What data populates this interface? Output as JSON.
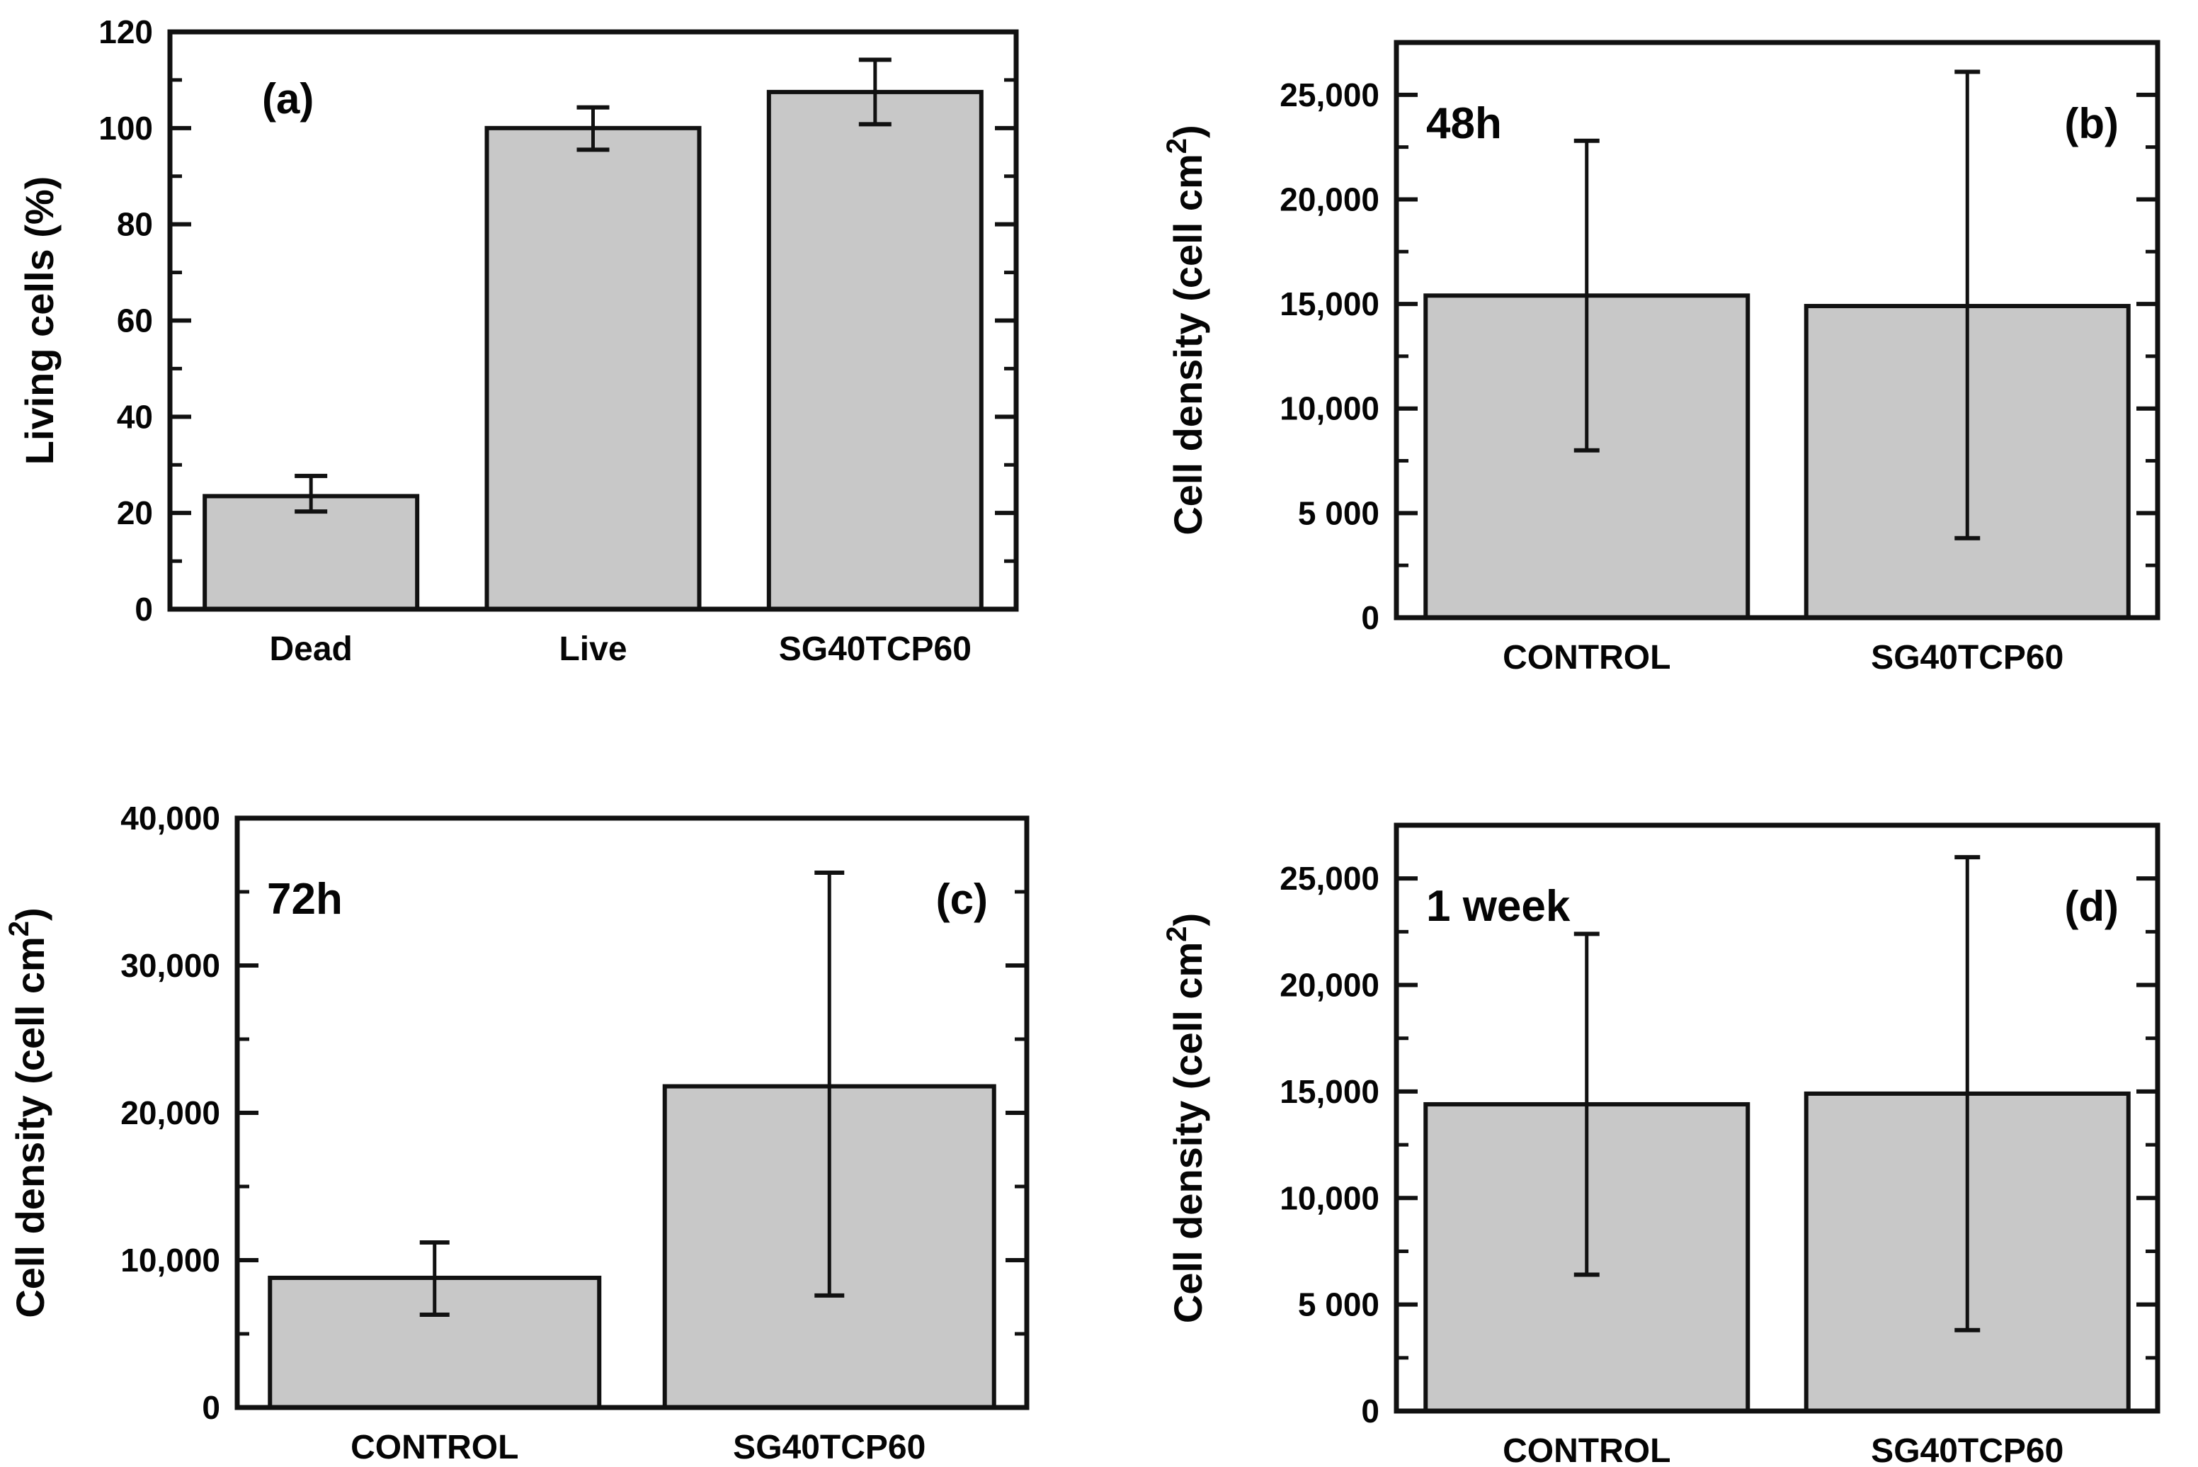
{
  "figure": {
    "background": "#ffffff",
    "frame_color": "#111111",
    "text_color": "#050505"
  },
  "chart_data": [
    {
      "panel": "a",
      "panel_label": "(a)",
      "annotation": "",
      "type": "bar",
      "categories": [
        "Dead",
        "Live",
        "SG40TCP60"
      ],
      "values": [
        23.5,
        100,
        107.5
      ],
      "error_low": [
        20.3,
        95.5,
        100.8
      ],
      "error_high": [
        27.7,
        104.3,
        114.2
      ],
      "ylabel": {
        "main": "Living cells (%)",
        "sup": "",
        "end": ""
      },
      "xlabel": "",
      "ylim": [
        0,
        120
      ],
      "ytick_step": 20,
      "minor_step": 10,
      "ytick_labels": [
        "0",
        "20",
        "40",
        "60",
        "80",
        "100",
        "120"
      ],
      "grid": "off",
      "legend": "none",
      "bar_fill": "#c8c8c8",
      "bar_edge": "#111111"
    },
    {
      "panel": "b",
      "panel_label": "(b)",
      "annotation": "48h",
      "type": "bar",
      "categories": [
        "CONTROL",
        "SG40TCP60"
      ],
      "values": [
        15400,
        14900
      ],
      "error_low": [
        8000,
        3800
      ],
      "error_high": [
        22800,
        26100
      ],
      "ylabel": {
        "main": "Cell density (cell cm",
        "sup": "2",
        "end": ")"
      },
      "xlabel": "",
      "ylim": [
        0,
        27500
      ],
      "ytick_step": 5000,
      "minor_step": 2500,
      "ytick_labels": [
        "0",
        "5 000",
        "10,000",
        "15,000",
        "20,000",
        "25,000"
      ],
      "grid": "off",
      "legend": "none",
      "bar_fill": "#c8c8c8",
      "bar_edge": "#111111"
    },
    {
      "panel": "c",
      "panel_label": "(c)",
      "annotation": "72h",
      "type": "bar",
      "categories": [
        "CONTROL",
        "SG40TCP60"
      ],
      "values": [
        8800,
        21800
      ],
      "error_low": [
        6300,
        7600
      ],
      "error_high": [
        11200,
        36300
      ],
      "ylabel": {
        "main": "Cell density (cell cm",
        "sup": "2",
        "end": ")"
      },
      "xlabel": "",
      "ylim": [
        0,
        40000
      ],
      "ytick_step": 10000,
      "minor_step": 5000,
      "ytick_labels": [
        "0",
        "10,000",
        "20,000",
        "30,000",
        "40,000"
      ],
      "grid": "off",
      "legend": "none",
      "bar_fill": "#c8c8c8",
      "bar_edge": "#111111"
    },
    {
      "panel": "d",
      "panel_label": "(d)",
      "annotation": "1 week",
      "type": "bar",
      "categories": [
        "CONTROL",
        "SG40TCP60"
      ],
      "values": [
        14400,
        14900
      ],
      "error_low": [
        6400,
        3800
      ],
      "error_high": [
        22400,
        26000
      ],
      "ylabel": {
        "main": "Cell density (cell cm",
        "sup": "2",
        "end": ")"
      },
      "xlabel": "",
      "ylim": [
        0,
        27500
      ],
      "ytick_step": 5000,
      "minor_step": 2500,
      "ytick_labels": [
        "0",
        "5 000",
        "10,000",
        "15,000",
        "20,000",
        "25,000"
      ],
      "grid": "off",
      "legend": "none",
      "bar_fill": "#c8c8c8",
      "bar_edge": "#111111"
    }
  ]
}
